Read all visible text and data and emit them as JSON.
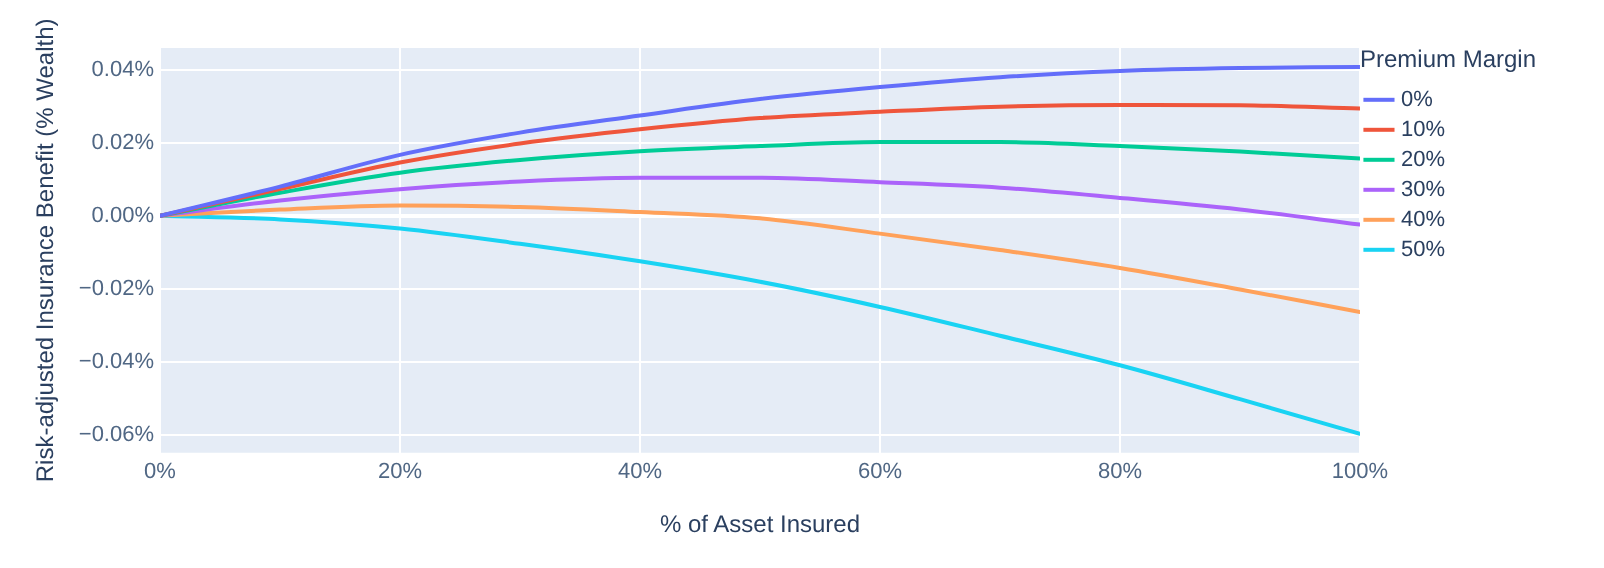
{
  "chart_data": {
    "type": "line",
    "xlabel": "% of Asset Insured",
    "ylabel": "Risk-adjusted Insurance Benefit (% Wealth)",
    "legend_title": "Premium Margin",
    "legend": "top right",
    "grid": true,
    "marker": "none",
    "line_style": "solid",
    "x": [
      0,
      10,
      20,
      30,
      40,
      50,
      60,
      70,
      80,
      90,
      100
    ],
    "xlim": [
      0,
      100
    ],
    "xticks": [
      {
        "value": 0,
        "label": "0%"
      },
      {
        "value": 20,
        "label": "20%"
      },
      {
        "value": 40,
        "label": "40%"
      },
      {
        "value": 60,
        "label": "60%"
      },
      {
        "value": 80,
        "label": "80%"
      },
      {
        "value": 100,
        "label": "100%"
      }
    ],
    "ylim": [
      -0.065,
      0.046
    ],
    "yticks": [
      {
        "value": -0.06,
        "label": "−0.06%"
      },
      {
        "value": -0.04,
        "label": "−0.04%"
      },
      {
        "value": -0.02,
        "label": "−0.02%"
      },
      {
        "value": 0,
        "label": "0.00%"
      },
      {
        "value": 0.02,
        "label": "0.02%"
      },
      {
        "value": 0.04,
        "label": "0.04%"
      }
    ],
    "series": [
      {
        "name": "0%",
        "color": "#636efa",
        "values": [
          0,
          0.008,
          0.0167,
          0.0228,
          0.0275,
          0.032,
          0.0353,
          0.038,
          0.0397,
          0.0405,
          0.0408
        ]
      },
      {
        "name": "10%",
        "color": "#ef553b",
        "values": [
          0,
          0.0073,
          0.0146,
          0.0198,
          0.0237,
          0.0268,
          0.0285,
          0.0299,
          0.0304,
          0.0303,
          0.0294
        ]
      },
      {
        "name": "20%",
        "color": "#00cc96",
        "values": [
          0,
          0.0063,
          0.0118,
          0.0153,
          0.0177,
          0.0191,
          0.0202,
          0.0202,
          0.0191,
          0.0176,
          0.0157
        ]
      },
      {
        "name": "30%",
        "color": "#ab63fa",
        "values": [
          0,
          0.0042,
          0.0073,
          0.0094,
          0.0104,
          0.0104,
          0.0092,
          0.0077,
          0.0049,
          0.0017,
          -0.0024
        ]
      },
      {
        "name": "40%",
        "color": "#ffa15a",
        "values": [
          0,
          0.0017,
          0.0028,
          0.0024,
          0.001,
          -0.0007,
          -0.0049,
          -0.0094,
          -0.0143,
          -0.0202,
          -0.0264
        ]
      },
      {
        "name": "50%",
        "color": "#19d3f3",
        "values": [
          0,
          -0.001,
          -0.0035,
          -0.0077,
          -0.0125,
          -0.0181,
          -0.025,
          -0.0329,
          -0.041,
          -0.0503,
          -0.0598
        ]
      }
    ]
  }
}
